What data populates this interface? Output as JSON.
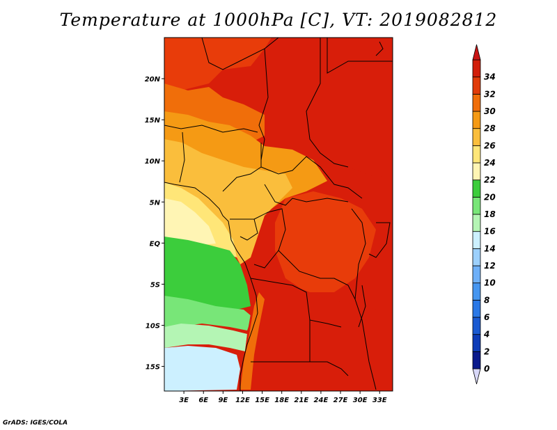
{
  "title": "Temperature at 1000hPa [C], VT: 2019082812",
  "footer": "GrADS: IGES/COLA",
  "map": {
    "projection": "latlon",
    "lon_range": [
      0,
      35
    ],
    "lat_range": [
      -18,
      25
    ],
    "lat_ticks": [
      "20N",
      "15N",
      "10N",
      "5N",
      "EQ",
      "5S",
      "10S",
      "15S"
    ],
    "lon_ticks": [
      "3E",
      "6E",
      "9E",
      "12E",
      "15E",
      "18E",
      "21E",
      "24E",
      "27E",
      "30E",
      "33E"
    ],
    "borders_color": "#000000",
    "field": "temperature_1000hPa",
    "units": "C"
  },
  "colorbar": {
    "levels": [
      "0",
      "2",
      "4",
      "6",
      "8",
      "10",
      "12",
      "14",
      "16",
      "18",
      "20",
      "22",
      "24",
      "26",
      "28",
      "30",
      "32",
      "34"
    ],
    "colors": [
      "#d8d8f8",
      "#0a1a8c",
      "#0d3cb8",
      "#1a5ad2",
      "#2a78e6",
      "#4696f0",
      "#6eb0f8",
      "#9cd0fc",
      "#ccf0ff",
      "#b4f5b4",
      "#78e678",
      "#3ccd3c",
      "#fff5b4",
      "#ffe678",
      "#fabe3c",
      "#f59a14",
      "#f06e0a",
      "#e13c0a",
      "#d21e0a",
      "#c81414"
    ]
  }
}
